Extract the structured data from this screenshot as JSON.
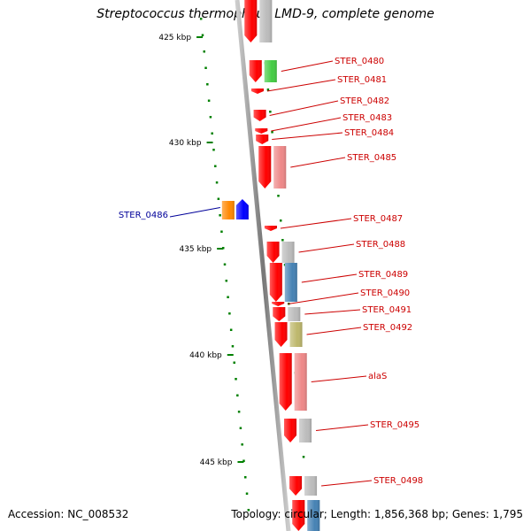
{
  "title": "Streptococcus thermophilus LMD-9, complete genome",
  "footer": {
    "accession": "Accession: NC_008532",
    "stats": "Topology: circular; Length: 1,856,368 bp; Genes: 1,795"
  },
  "colors": {
    "gene_forward": "#ff0000",
    "label_forward": "#cc0000",
    "label_reverse": "#000099",
    "backbone": "#888888",
    "ticks": "#008000"
  },
  "ticks": [
    {
      "label": "425 kbp"
    },
    {
      "label": "430 kbp"
    },
    {
      "label": "435 kbp"
    },
    {
      "label": "440 kbp"
    },
    {
      "label": "445 kbp"
    }
  ],
  "genes": [
    {
      "name": "",
      "strand": "+",
      "cog": "#bbbbbb"
    },
    {
      "name": "STER_0480",
      "strand": "+",
      "cog": "#44cc44"
    },
    {
      "name": "STER_0481",
      "strand": "+",
      "cog": ""
    },
    {
      "name": "STER_0482",
      "strand": "+",
      "cog": ""
    },
    {
      "name": "STER_0483",
      "strand": "+",
      "cog": ""
    },
    {
      "name": "STER_0484",
      "strand": "+",
      "cog": ""
    },
    {
      "name": "STER_0485",
      "strand": "+",
      "cog": "#ee8888"
    },
    {
      "name": "STER_0486",
      "strand": "-",
      "cog": "#ff8800"
    },
    {
      "name": "STER_0487",
      "strand": "+",
      "cog": ""
    },
    {
      "name": "STER_0488",
      "strand": "+",
      "cog": "#bbbbbb"
    },
    {
      "name": "STER_0489",
      "strand": "+",
      "cog": "#4682b4"
    },
    {
      "name": "STER_0490",
      "strand": "+",
      "cog": ""
    },
    {
      "name": "STER_0491",
      "strand": "+",
      "cog": "#bbbbbb"
    },
    {
      "name": "STER_0492",
      "strand": "+",
      "cog": "#bdb76b"
    },
    {
      "name": "alaS",
      "strand": "+",
      "cog": "#ee8888"
    },
    {
      "name": "STER_0495",
      "strand": "+",
      "cog": "#bbbbbb"
    },
    {
      "name": "STER_0498",
      "strand": "+",
      "cog": "#bbbbbb"
    },
    {
      "name": "",
      "strand": "+",
      "cog": "#4682b4"
    }
  ]
}
